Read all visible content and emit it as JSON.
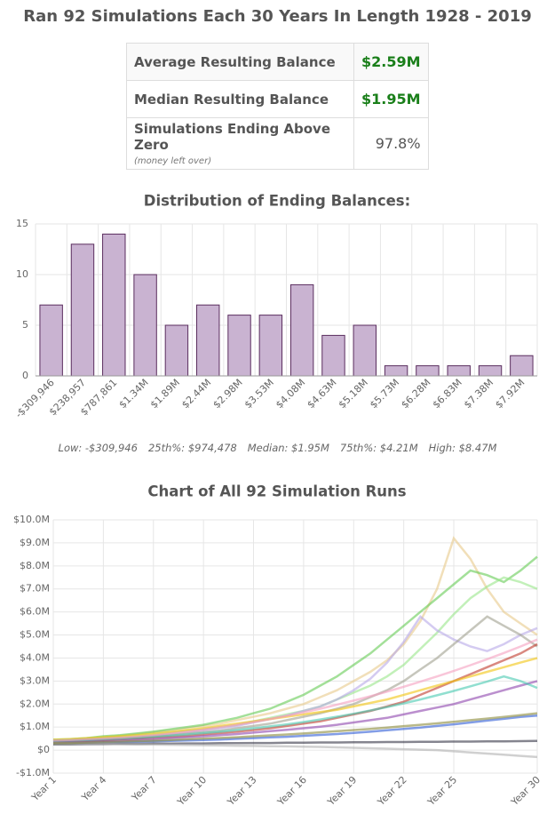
{
  "header": {
    "title": "Ran 92 Simulations Each 30 Years In Length 1928 - 2019"
  },
  "table": {
    "rows": [
      {
        "label": "Average Resulting Balance",
        "value": "$2.59M"
      },
      {
        "label": "Median Resulting Balance",
        "value": "$1.95M"
      },
      {
        "label": "Simulations Ending Above Zero",
        "value": "97.8%",
        "note": "(money left over)"
      }
    ]
  },
  "stats": [
    "Low: -$309,946",
    "25th%: $974,478",
    "Median: $1.95M",
    "75th%: $4.21M",
    "High: $8.47M"
  ],
  "chart_data": [
    {
      "type": "bar",
      "title": "Distribution of Ending Balances:",
      "categories": [
        "-$309,946",
        "$238,957",
        "$787,861",
        "$1.34M",
        "$1.89M",
        "$2.44M",
        "$2.98M",
        "$3.53M",
        "$4.08M",
        "$4.63M",
        "$5.18M",
        "$5.73M",
        "$6.28M",
        "$6.83M",
        "$7.38M",
        "$7.92M"
      ],
      "values": [
        7,
        13,
        14,
        10,
        5,
        7,
        6,
        6,
        9,
        4,
        5,
        1,
        1,
        1,
        1,
        2
      ],
      "color": "#c9b3d1",
      "edge_color": "#5a2d5e",
      "ylim": [
        0,
        15
      ],
      "yticks": [
        0,
        5,
        10,
        15
      ],
      "grid": true
    },
    {
      "type": "line",
      "title": "Chart of All 92 Simulation Runs",
      "categories": [
        "Year 1",
        null,
        null,
        "Year 4",
        null,
        null,
        "Year 7",
        null,
        null,
        "Year 10",
        null,
        null,
        "Year 13",
        null,
        null,
        "Year 16",
        null,
        null,
        "Year 19",
        null,
        null,
        "Year 22",
        null,
        null,
        "Year 25",
        null,
        null,
        null,
        null,
        "Year 30"
      ],
      "ylim": [
        -1000000,
        10000000
      ],
      "yticks": [
        {
          "value": -1000000,
          "label": "-$1.0M"
        },
        {
          "value": 0,
          "label": "$0"
        },
        {
          "value": 1000000,
          "label": "$1.0M"
        },
        {
          "value": 2000000,
          "label": "$2.0M"
        },
        {
          "value": 3000000,
          "label": "$3.0M"
        },
        {
          "value": 4000000,
          "label": "$4.0M"
        },
        {
          "value": 5000000,
          "label": "$5.0M"
        },
        {
          "value": 6000000,
          "label": "$6.0M"
        },
        {
          "value": 7000000,
          "label": "$7.0M"
        },
        {
          "value": 8000000,
          "label": "$8.0M"
        },
        {
          "value": 9000000,
          "label": "$9.0M"
        },
        {
          "value": 10000000,
          "label": "$10.0M"
        }
      ],
      "grid": true,
      "series": [
        {
          "color": "#e8c98a",
          "values": [
            400000,
            450000,
            500000,
            560000,
            620000,
            700000,
            780000,
            850000,
            950000,
            1050000,
            1150000,
            1300000,
            1450000,
            1600000,
            1800000,
            2000000,
            2300000,
            2600000,
            3000000,
            3400000,
            3900000,
            4600000,
            5600000,
            7000000,
            9200000,
            8300000,
            7000000,
            6000000,
            5500000,
            5000000
          ]
        },
        {
          "color": "#66cc55",
          "values": [
            450000,
            480000,
            520000,
            600000,
            650000,
            720000,
            800000,
            900000,
            1000000,
            1100000,
            1250000,
            1400000,
            1600000,
            1800000,
            2100000,
            2400000,
            2800000,
            3200000,
            3700000,
            4200000,
            4800000,
            5400000,
            6000000,
            6600000,
            7200000,
            7800000,
            7600000,
            7300000,
            7800000,
            8400000
          ]
        },
        {
          "color": "#99e68a",
          "values": [
            400000,
            430000,
            470000,
            500000,
            560000,
            620000,
            680000,
            760000,
            840000,
            900000,
            1000000,
            1100000,
            1250000,
            1400000,
            1550000,
            1700000,
            1900000,
            2200000,
            2500000,
            2800000,
            3200000,
            3700000,
            4400000,
            5100000,
            5900000,
            6600000,
            7100000,
            7500000,
            7300000,
            7000000
          ]
        },
        {
          "color": "#b8a8e8",
          "values": [
            350000,
            380000,
            420000,
            460000,
            500000,
            560000,
            620000,
            700000,
            780000,
            860000,
            950000,
            1050000,
            1200000,
            1350000,
            1500000,
            1700000,
            1900000,
            2200000,
            2600000,
            3100000,
            3800000,
            4700000,
            5800000,
            5200000,
            4800000,
            4500000,
            4300000,
            4600000,
            5000000,
            5300000
          ]
        },
        {
          "color": "#a0a090",
          "values": [
            400000,
            420000,
            450000,
            480000,
            520000,
            560000,
            600000,
            660000,
            720000,
            780000,
            850000,
            950000,
            1050000,
            1150000,
            1300000,
            1450000,
            1600000,
            1800000,
            2000000,
            2300000,
            2600000,
            3000000,
            3500000,
            4000000,
            4600000,
            5200000,
            5800000,
            5400000,
            5000000,
            4500000
          ]
        },
        {
          "color": "#c0392b",
          "values": [
            380000,
            400000,
            420000,
            440000,
            470000,
            500000,
            540000,
            580000,
            620000,
            680000,
            740000,
            800000,
            870000,
            950000,
            1050000,
            1150000,
            1250000,
            1400000,
            1550000,
            1700000,
            1900000,
            2100000,
            2400000,
            2700000,
            3000000,
            3300000,
            3600000,
            3900000,
            4200000,
            4600000
          ]
        },
        {
          "color": "#2e5cd6",
          "values": [
            300000,
            310000,
            320000,
            330000,
            340000,
            360000,
            380000,
            400000,
            420000,
            440000,
            460000,
            490000,
            520000,
            550000,
            580000,
            620000,
            660000,
            700000,
            750000,
            800000,
            860000,
            920000,
            980000,
            1050000,
            1120000,
            1200000,
            1280000,
            1360000,
            1440000,
            1500000
          ]
        },
        {
          "color": "#8e44ad",
          "values": [
            350000,
            360000,
            380000,
            400000,
            420000,
            450000,
            480000,
            520000,
            560000,
            600000,
            650000,
            700000,
            760000,
            820000,
            880000,
            950000,
            1020000,
            1100000,
            1200000,
            1300000,
            1400000,
            1550000,
            1700000,
            1850000,
            2000000,
            2200000,
            2400000,
            2600000,
            2800000,
            3000000
          ]
        },
        {
          "color": "#333344",
          "values": [
            250000,
            250000,
            260000,
            260000,
            270000,
            270000,
            280000,
            280000,
            290000,
            290000,
            300000,
            300000,
            310000,
            310000,
            320000,
            320000,
            330000,
            330000,
            340000,
            340000,
            350000,
            350000,
            360000,
            360000,
            370000,
            370000,
            380000,
            380000,
            390000,
            400000
          ]
        },
        {
          "color": "#b0b0b0",
          "values": [
            300000,
            290000,
            280000,
            270000,
            260000,
            250000,
            240000,
            230000,
            220000,
            210000,
            200000,
            190000,
            180000,
            170000,
            160000,
            150000,
            140000,
            120000,
            100000,
            80000,
            60000,
            40000,
            20000,
            0,
            -50000,
            -100000,
            -150000,
            -200000,
            -250000,
            -300000
          ]
        },
        {
          "color": "#f1c40f",
          "values": [
            450000,
            480000,
            520000,
            560000,
            600000,
            650000,
            710000,
            780000,
            860000,
            950000,
            1050000,
            1150000,
            1250000,
            1350000,
            1450000,
            1550000,
            1650000,
            1750000,
            1900000,
            2050000,
            2200000,
            2400000,
            2600000,
            2800000,
            3000000,
            3200000,
            3400000,
            3600000,
            3800000,
            4000000
          ]
        },
        {
          "color": "#48c9b0",
          "values": [
            400000,
            420000,
            440000,
            470000,
            500000,
            540000,
            580000,
            630000,
            680000,
            740000,
            800000,
            870000,
            950000,
            1030000,
            1120000,
            1220000,
            1330000,
            1450000,
            1580000,
            1720000,
            1870000,
            2030000,
            2200000,
            2380000,
            2570000,
            2770000,
            2980000,
            3200000,
            3000000,
            2700000
          ]
        },
        {
          "color": "#8a8a3a",
          "values": [
            300000,
            310000,
            330000,
            350000,
            370000,
            390000,
            410000,
            440000,
            470000,
            500000,
            530000,
            560000,
            600000,
            640000,
            680000,
            720000,
            770000,
            820000,
            870000,
            920000,
            980000,
            1040000,
            1100000,
            1160000,
            1230000,
            1300000,
            1370000,
            1440000,
            1520000,
            1600000
          ]
        },
        {
          "color": "#f5a0c0",
          "values": [
            420000,
            440000,
            470000,
            500000,
            540000,
            590000,
            650000,
            720000,
            800000,
            890000,
            990000,
            1100000,
            1220000,
            1350000,
            1490000,
            1640000,
            1800000,
            1970000,
            2150000,
            2340000,
            2540000,
            2750000,
            2970000,
            3200000,
            3440000,
            3690000,
            3950000,
            4220000,
            4500000,
            4800000
          ]
        }
      ]
    }
  ]
}
